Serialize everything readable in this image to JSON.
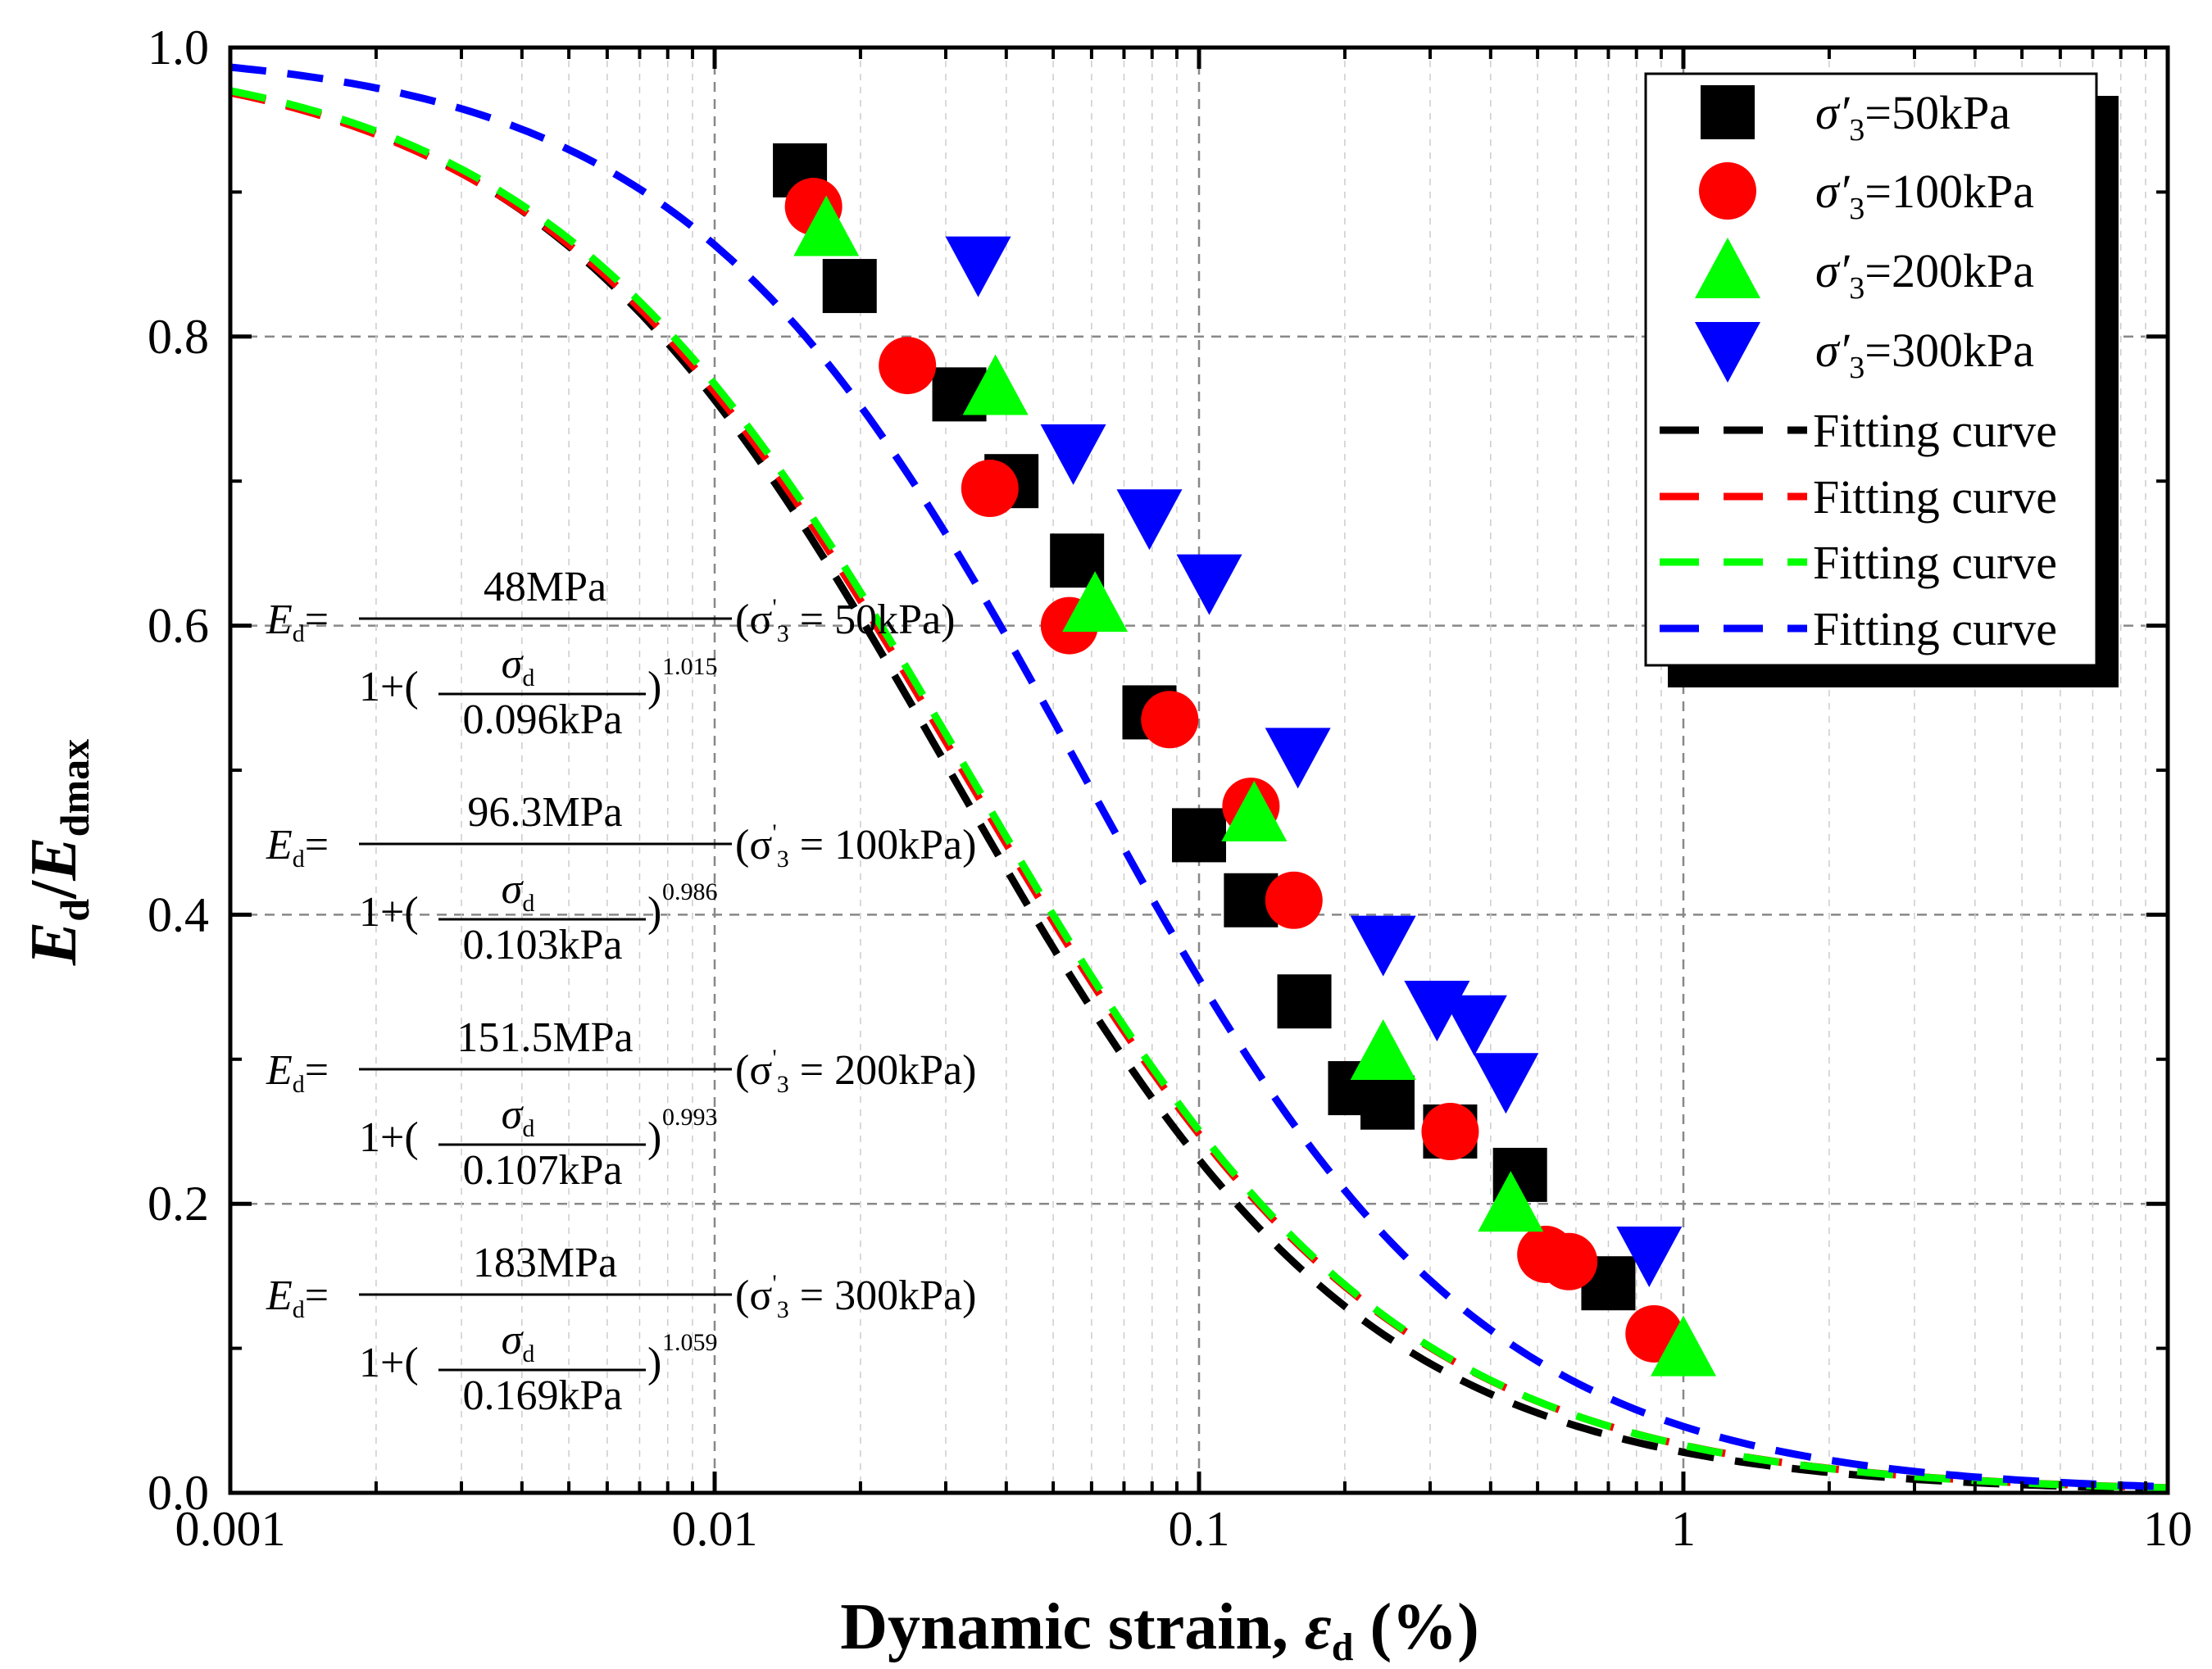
{
  "chart_data": {
    "type": "scatter",
    "x_scale": "log",
    "xlim": [
      0.001,
      10
    ],
    "ylim": [
      0.0,
      1.0
    ],
    "grid": true,
    "legend_position": "top-right",
    "xlabel": {
      "main": "Dynamic strain, ",
      "symbol": "ε",
      "sub": "d",
      "unit": " (%)"
    },
    "ylabel": {
      "num": "E",
      "num_sub": "d",
      "slash": "/",
      "den": "E",
      "den_sub": "dmax"
    },
    "x_ticks": [
      {
        "value": 0.001,
        "label": "0.001"
      },
      {
        "value": 0.01,
        "label": "0.01"
      },
      {
        "value": 0.1,
        "label": "0.1"
      },
      {
        "value": 1,
        "label": "1"
      },
      {
        "value": 10,
        "label": "10"
      }
    ],
    "y_ticks": [
      {
        "value": 0.0,
        "label": "0.0"
      },
      {
        "value": 0.2,
        "label": "0.2"
      },
      {
        "value": 0.4,
        "label": "0.4"
      },
      {
        "value": 0.6,
        "label": "0.6"
      },
      {
        "value": 0.8,
        "label": "0.8"
      },
      {
        "value": 1.0,
        "label": "1.0"
      }
    ],
    "series": [
      {
        "name": "σ′3=50kPa",
        "legend_prefix": "σ′",
        "legend_sub": "3",
        "legend_value": "=50kPa",
        "marker": "square",
        "color": "#000000",
        "x": [
          0.015,
          0.019,
          0.032,
          0.041,
          0.056,
          0.079,
          0.1,
          0.128,
          0.165,
          0.21,
          0.245,
          0.33,
          0.46,
          0.7
        ],
        "y": [
          0.915,
          0.835,
          0.76,
          0.7,
          0.645,
          0.54,
          0.455,
          0.41,
          0.34,
          0.28,
          0.27,
          0.25,
          0.22,
          0.145
        ]
      },
      {
        "name": "σ′3=100kPa",
        "legend_prefix": "σ′",
        "legend_sub": "3",
        "legend_value": "=100kPa",
        "marker": "circle",
        "color": "#ff0000",
        "x": [
          0.016,
          0.025,
          0.037,
          0.054,
          0.087,
          0.128,
          0.157,
          0.33,
          0.52,
          0.58,
          0.87
        ],
        "y": [
          0.89,
          0.78,
          0.695,
          0.6,
          0.535,
          0.475,
          0.41,
          0.25,
          0.165,
          0.16,
          0.11
        ]
      },
      {
        "name": "σ′3=200kPa",
        "legend_prefix": "σ′",
        "legend_sub": "3",
        "legend_value": "=200kPa",
        "marker": "triangle-up",
        "color": "#00ff00",
        "x": [
          0.017,
          0.038,
          0.061,
          0.13,
          0.24,
          0.44,
          1.0
        ],
        "y": [
          0.875,
          0.765,
          0.615,
          0.47,
          0.305,
          0.2,
          0.1
        ]
      },
      {
        "name": "σ′3=300kPa",
        "legend_prefix": "σ′",
        "legend_sub": "3",
        "legend_value": "=300kPa",
        "marker": "triangle-down",
        "color": "#0000ff",
        "x": [
          0.035,
          0.055,
          0.079,
          0.105,
          0.16,
          0.24,
          0.31,
          0.37,
          0.43,
          0.85
        ],
        "y": [
          0.85,
          0.72,
          0.675,
          0.63,
          0.51,
          0.38,
          0.335,
          0.325,
          0.285,
          0.165
        ]
      }
    ],
    "fit_curves": [
      {
        "name": "Fitting curve",
        "color": "#000000",
        "x0": 0.0305,
        "n": 1.015
      },
      {
        "name": "Fitting curve",
        "color": "#ff0000",
        "x0": 0.0325,
        "n": 0.986
      },
      {
        "name": "Fitting curve",
        "color": "#00ff00",
        "x0": 0.0332,
        "n": 0.993
      },
      {
        "name": "Fitting curve",
        "color": "#0000ff",
        "x0": 0.057,
        "n": 1.059
      }
    ],
    "annotations": [
      {
        "lhs": "E",
        "lhs_sub": "d",
        "numerator": "48MPa",
        "den_one": "1+(",
        "frac_num": "σ",
        "frac_num_sub": "d",
        "frac_den": "0.096kPa",
        "close": ")",
        "exponent": "1.015",
        "cond_open": "(σ",
        "cond_prime": "'",
        "cond_sub": "3",
        "cond_value": " = 50kPa)"
      },
      {
        "lhs": "E",
        "lhs_sub": "d",
        "numerator": "96.3MPa",
        "den_one": "1+(",
        "frac_num": "σ",
        "frac_num_sub": "d",
        "frac_den": "0.103kPa",
        "close": ")",
        "exponent": "0.986",
        "cond_open": "(σ",
        "cond_prime": "'",
        "cond_sub": "3",
        "cond_value": " = 100kPa)"
      },
      {
        "lhs": "E",
        "lhs_sub": "d",
        "numerator": "151.5MPa",
        "den_one": "1+(",
        "frac_num": "σ",
        "frac_num_sub": "d",
        "frac_den": "0.107kPa",
        "close": ")",
        "exponent": "0.993",
        "cond_open": "(σ",
        "cond_prime": "'",
        "cond_sub": "3",
        "cond_value": " = 200kPa)"
      },
      {
        "lhs": "E",
        "lhs_sub": "d",
        "numerator": "183MPa",
        "den_one": "1+(",
        "frac_num": "σ",
        "frac_num_sub": "d",
        "frac_den": "0.169kPa",
        "close": ")",
        "exponent": "1.059",
        "cond_open": "(σ",
        "cond_prime": "'",
        "cond_sub": "3",
        "cond_value": " = 300kPa)"
      }
    ]
  }
}
